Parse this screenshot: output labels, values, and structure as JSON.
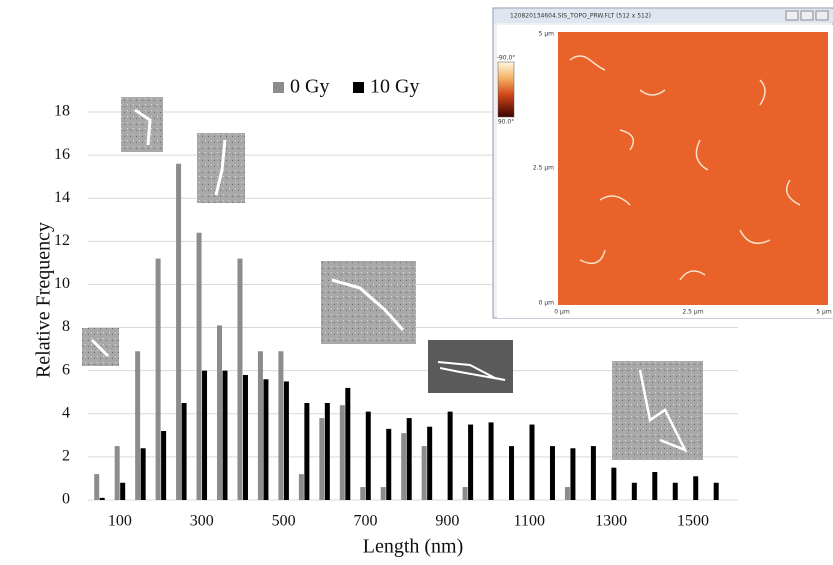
{
  "chart_data": {
    "type": "bar",
    "y_label": "Relative Frequency",
    "x_label": "Length (nm)",
    "x": [
      50,
      100,
      150,
      200,
      250,
      300,
      350,
      400,
      450,
      500,
      550,
      600,
      650,
      700,
      750,
      800,
      850,
      900,
      950,
      1000,
      1050,
      1100,
      1150,
      1200,
      1250,
      1300,
      1350,
      1400,
      1450,
      1500,
      1550
    ],
    "series": [
      {
        "name": "0 Gy",
        "color": "#8c8c8c",
        "values": [
          1.2,
          2.5,
          6.9,
          11.2,
          15.6,
          12.4,
          8.1,
          11.2,
          6.9,
          6.9,
          1.2,
          3.8,
          4.4,
          0.6,
          0.6,
          3.1,
          2.5,
          0,
          0.6,
          0,
          0,
          0,
          0,
          0.6,
          0,
          0,
          0,
          0,
          0,
          0,
          0
        ]
      },
      {
        "name": "10 Gy",
        "color": "#000000",
        "values": [
          0.1,
          0.8,
          2.4,
          3.2,
          4.5,
          6.0,
          6.0,
          5.8,
          5.6,
          5.5,
          4.5,
          4.5,
          5.2,
          4.1,
          3.3,
          3.8,
          3.4,
          4.1,
          3.5,
          3.6,
          2.5,
          3.5,
          2.5,
          2.4,
          2.5,
          1.5,
          0.8,
          1.3,
          0.8,
          1.1,
          0.8
        ]
      }
    ],
    "xlim": [
      22,
      1610
    ],
    "xticks": [
      100,
      300,
      500,
      700,
      900,
      1100,
      1300,
      1500
    ],
    "ylim": [
      0,
      18
    ],
    "yticks": [
      0,
      2,
      4,
      6,
      8,
      10,
      12,
      14,
      16,
      18
    ],
    "grid": true,
    "legend": "top"
  },
  "afm_window": {
    "title": "120820134604.SIS_TOPO_PRW.FLT (512 x 512)",
    "y_labels": [
      "5 µm",
      "2.5 µm",
      "0 µm"
    ],
    "x_labels": [
      "0 µm",
      "2.5 µm",
      "5 µm"
    ],
    "colorbar_labels": [
      "-90.0°",
      "90.0°"
    ]
  }
}
